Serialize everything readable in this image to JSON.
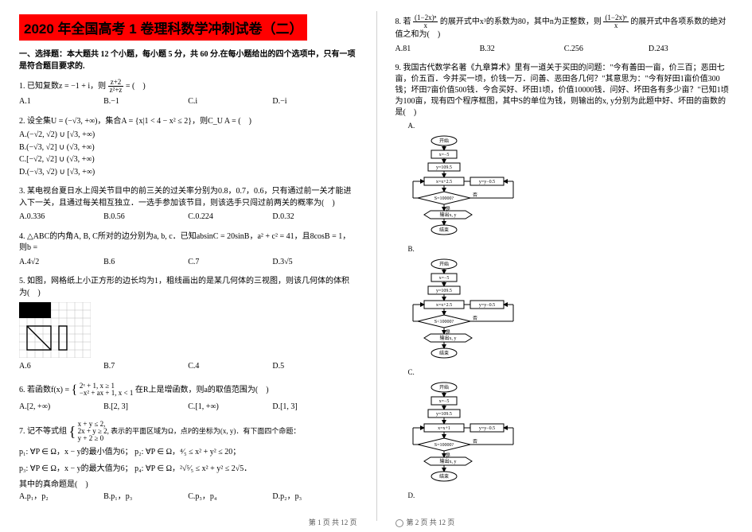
{
  "title": "2020 年全国高考 1 卷理科数学冲刺试卷（二）",
  "section1": "一、选择题：本大题共 12 个小题，每小题 5 分，共 60 分.在每小题给出的四个选项中，只有一项是符合题目要求的.",
  "q1": {
    "stem": "1. 已知复数z = −1 + i，则",
    "stem2": " = (　)",
    "frac_num": "z+2",
    "frac_den": "z²+z",
    "A": "A.1",
    "B": "B.−1",
    "C": "C.i",
    "D": "D.−i"
  },
  "q2": {
    "stem": "2. 设全集U = (−√3, +∞)，集合A = {x|1 < 4 − x² ≤ 2}，则C_U A = (　)",
    "A": "A.(−√2, √2) ∪ [√3, +∞)",
    "B": "B.(−√3, √2] ∪ (√3, +∞)",
    "C": "C.[−√2, √2] ∪ (√3, +∞)",
    "D": "D.(−√3, √2) ∪ [√3, +∞)"
  },
  "q3": {
    "stem": "3. 某电视台夏日水上闯关节目中的前三关的过关率分别为0.8，0.7，0.6，只有通过前一关才能进入下一关，且通过每关相互独立．一选手参加该节目，则该选手只闯过前两关的概率为(　)",
    "A": "A.0.336",
    "B": "B.0.56",
    "C": "C.0.224",
    "D": "D.0.32"
  },
  "q4": {
    "stem": "4. △ABC的内角A, B, C所对的边分别为a, b, c．已知absinC = 20sinB，a² + c² = 41，且8cosB = 1，则b =",
    "A": "A.4√2",
    "B": "B.6",
    "C": "C.7",
    "D": "D.3√5"
  },
  "q5": {
    "stem": "5. 如图，网格纸上小正方形的边长均为1，粗线画出的是某几何体的三视图，则该几何体的体积为(　)",
    "A": "A.6",
    "B": "B.7",
    "C": "C.4",
    "D": "D.5"
  },
  "q6": {
    "stem_pre": "6. 若函数f(x) = ",
    "stem_post": " 在R上是增函数，则a的取值范围为(　)",
    "case1": "2ˣ + 1, x ≥ 1",
    "case2": "−x² + ax + 1, x < 1",
    "A": "A.[2, +∞)",
    "B": "B.[2, 3]",
    "C": "C.[1, +∞)",
    "D": "D.[1, 3]"
  },
  "q7": {
    "stem": "7. 记不等式组",
    "sys1": "x + y ≤ 2,",
    "sys2": "2x + y ≥ 2, 表示的平面区域为Ω，点P的坐标为(x, y)．有下面四个命题：",
    "sys3": "y + 2 ≥ 0",
    "p1": "p₁: ∀P ∈ Ω，x − y的最小值为6；",
    "p2": "p₂: ∀P ∈ Ω，⁴⁄₅ ≤ x² + y² ≤ 20；",
    "p3": "p₃: ∀P ∈ Ω，x − y的最大值为6；",
    "p4": "p₄: ∀P ∈ Ω，²√⁵⁄₅ ≤ x² + y² ≤ 2√5．",
    "tail": "其中的真命题是(　)",
    "A": "A.p₁，p₂",
    "B": "B.p₁，p₃",
    "C": "C.p₃，p₄",
    "D": "D.p₂，p₃"
  },
  "q8": {
    "stem_pre": "8. 若",
    "stem_post": "的展开式中x³的系数为80，其中n为正整数，则",
    "stem_post2": "的展开式中各项系数的绝对值之和为(　)",
    "frac1_num": "(1−2x)ⁿ",
    "frac1_den": "x",
    "frac2_num": "(1−2x)ⁿ",
    "frac2_den": "x",
    "A": "A.81",
    "B": "B.32",
    "C": "C.256",
    "D": "D.243"
  },
  "q9": {
    "stem": "9. 我国古代数学名著《九章算术》里有一道关于买田的问题：\"今有善田一亩，价三百；恶田七亩，价五百．今并买一顷，价钱一万．问善、恶田各几何？\"其意思为：\"今有好田1亩价值300钱；坏田7亩价值500钱．今合买好、坏田1顷，价值10000钱．问好、坏田各有多少亩？\"已知1顷为100亩，现有四个程序框图，其中S的单位为钱，则输出的x, y分别为此题中好、坏田的亩数的是(　)",
    "labelA": "A.",
    "labelB": "B.",
    "labelC": "C.",
    "labelD": "D."
  },
  "flow": {
    "start": "开始",
    "init_x": "x=−5",
    "init_y": "y=109.5",
    "update1": "x=x+2.5",
    "update1b": "x=x+1",
    "update2": "y=y−0.5",
    "calc": "S=300x+500y/7",
    "condA": "S=10000?",
    "condB": "S<10000?",
    "out": "输出x, y",
    "end": "结束",
    "yes": "是",
    "no": "否"
  },
  "footer_left": "第 1 页 共 12 页",
  "footer_right": "第 2 页 共 12 页"
}
